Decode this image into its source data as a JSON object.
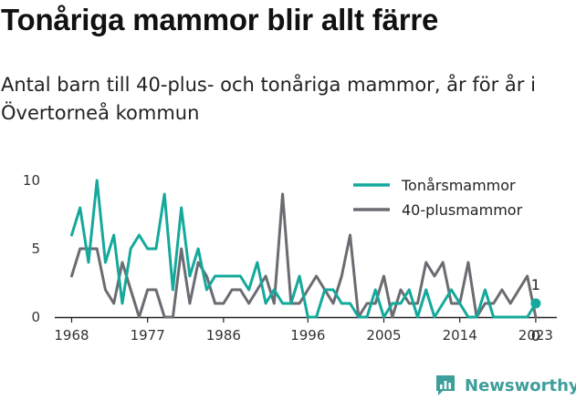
{
  "title": "Tonåriga mammor blir allt färre",
  "subtitle": "Antal barn till 40-plus- och tonåriga mammor, år för år i Övertorneå kommun",
  "brand": {
    "name": "Newsworthy",
    "logo_icon": "newsworthy-logo-icon"
  },
  "colors": {
    "teen": "#14a99b",
    "forty": "#6b6b72",
    "axis": "#222222",
    "brand": "#3d9e9a"
  },
  "chart_data": {
    "type": "line",
    "x": [
      1968,
      1969,
      1970,
      1971,
      1972,
      1973,
      1974,
      1975,
      1976,
      1977,
      1978,
      1979,
      1980,
      1981,
      1982,
      1983,
      1984,
      1985,
      1986,
      1987,
      1988,
      1989,
      1990,
      1991,
      1992,
      1993,
      1994,
      1995,
      1996,
      1997,
      1998,
      1999,
      2000,
      2001,
      2002,
      2003,
      2004,
      2005,
      2006,
      2007,
      2008,
      2009,
      2010,
      2011,
      2012,
      2013,
      2014,
      2015,
      2016,
      2017,
      2018,
      2019,
      2020,
      2021,
      2022,
      2023
    ],
    "series": [
      {
        "name": "Tonårsmammor",
        "color": "#14a99b",
        "values": [
          6,
          8,
          4,
          10,
          4,
          6,
          1,
          5,
          6,
          5,
          5,
          9,
          2,
          8,
          3,
          5,
          2,
          3,
          3,
          3,
          3,
          2,
          4,
          1,
          2,
          1,
          1,
          3,
          0,
          0,
          2,
          2,
          1,
          1,
          0,
          0,
          2,
          0,
          1,
          1,
          2,
          0,
          2,
          0,
          1,
          2,
          1,
          0,
          0,
          2,
          0,
          0,
          0,
          0,
          0,
          1
        ]
      },
      {
        "name": "40-plusmammor",
        "color": "#6b6b72",
        "values": [
          3,
          5,
          5,
          5,
          2,
          1,
          4,
          2,
          0,
          2,
          2,
          0,
          0,
          5,
          1,
          4,
          3,
          1,
          1,
          2,
          2,
          1,
          2,
          3,
          1,
          9,
          1,
          1,
          2,
          3,
          2,
          1,
          3,
          6,
          0,
          1,
          1,
          3,
          0,
          2,
          1,
          1,
          4,
          3,
          4,
          1,
          1,
          4,
          0,
          1,
          1,
          2,
          1,
          2,
          3,
          0
        ]
      }
    ],
    "end_labels": [
      "1",
      "0"
    ],
    "xticks": [
      "1968",
      "1977",
      "1986",
      "1996",
      "2005",
      "2014",
      "2023"
    ],
    "yticks": [
      "0",
      "5",
      "10"
    ],
    "xlim": [
      1966,
      2025.5
    ],
    "ylim": [
      0,
      10
    ],
    "grid": false,
    "legend_position": "top-right"
  }
}
